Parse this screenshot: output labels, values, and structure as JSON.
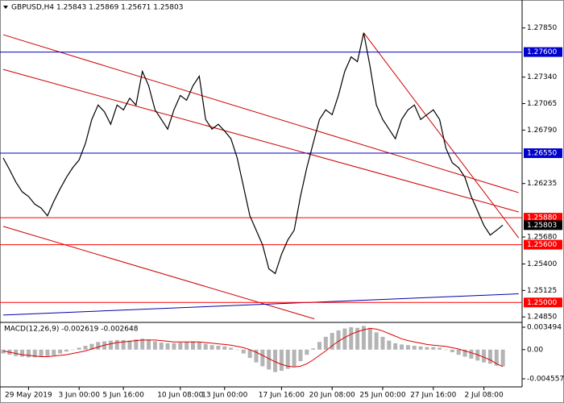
{
  "chart_data": [
    {
      "type": "line",
      "title": "GBPUSD,H4  1.25843 1.25869 1.25671 1.25803",
      "categories": [
        null,
        null,
        null,
        null,
        "29 May 2019",
        null,
        null,
        null,
        null,
        null,
        null,
        null,
        "3 Jun 00:00",
        null,
        null,
        null,
        null,
        null,
        null,
        "5 Jun 16:00",
        null,
        null,
        null,
        null,
        null,
        null,
        null,
        null,
        "10 Jun 08:00",
        null,
        null,
        null,
        null,
        null,
        null,
        "13 Jun 00:00",
        null,
        null,
        null,
        null,
        null,
        null,
        null,
        null,
        "17 Jun 16:00",
        null,
        null,
        null,
        null,
        null,
        null,
        null,
        "20 Jun 08:00",
        null,
        null,
        null,
        null,
        null,
        null,
        null,
        "25 Jun 00:00",
        null,
        null,
        null,
        null,
        null,
        null,
        null,
        "27 Jun 16:00",
        null,
        null,
        null,
        null,
        null,
        null,
        null,
        "2 Jul 08:00",
        null,
        null,
        null
      ],
      "values": [
        1.265,
        1.2638,
        1.2625,
        1.2615,
        1.261,
        1.2602,
        1.2598,
        1.259,
        1.2605,
        1.2618,
        1.263,
        1.264,
        1.2648,
        1.2665,
        1.269,
        1.2705,
        1.2698,
        1.2685,
        1.2705,
        1.27,
        1.2712,
        1.2705,
        1.274,
        1.2725,
        1.27,
        1.269,
        1.268,
        1.27,
        1.2715,
        1.271,
        1.2725,
        1.2735,
        1.269,
        1.268,
        1.2685,
        1.2678,
        1.267,
        1.265,
        1.262,
        1.259,
        1.2575,
        1.256,
        1.2535,
        1.253,
        1.255,
        1.2565,
        1.2575,
        1.261,
        1.264,
        1.2665,
        1.269,
        1.27,
        1.2695,
        1.2715,
        1.274,
        1.2755,
        1.275,
        1.278,
        1.2745,
        1.2705,
        1.269,
        1.268,
        1.267,
        1.269,
        1.27,
        1.2705,
        1.269,
        1.2695,
        1.27,
        1.269,
        1.266,
        1.2645,
        1.264,
        1.263,
        1.261,
        1.2595,
        1.258,
        1.257,
        1.2575,
        1.25803
      ],
      "color": "#000000",
      "ylim": [
        1.2481,
        1.2804
      ],
      "yticks": [
        {
          "value": 1.2785,
          "label": "1.27850"
        },
        {
          "value": 1.2734,
          "label": "1.27340"
        },
        1.27065,
        {
          "value": 1.2679,
          "label": "1.26790"
        },
        1.26235,
        {
          "value": 1.2568,
          "label": "1.25680"
        },
        {
          "value": 1.254,
          "label": "1.25400"
        },
        1.25125,
        {
          "value": 1.2485,
          "label": "1.24850"
        }
      ],
      "levels": [
        {
          "value": 1.276,
          "label": "1.27600",
          "color": "#0000cc"
        },
        {
          "value": 1.2655,
          "label": "1.26550",
          "color": "#0000cc"
        },
        {
          "value": 1.2588,
          "label": "1.25880",
          "color": "#ff0000"
        },
        {
          "value": 1.256,
          "label": "1.25600",
          "color": "#ff0000"
        },
        {
          "value": 1.25,
          "label": "1.25000",
          "color": "#ff0000"
        }
      ],
      "trend_lines": [
        {
          "color": "#cc0000",
          "x": [
            0,
            81.5
          ],
          "y": [
            1.2778,
            1.2614
          ]
        },
        {
          "color": "#cc0000",
          "x": [
            0,
            81.5
          ],
          "y": [
            1.2742,
            1.2594
          ]
        },
        {
          "color": "#cc0000",
          "x": [
            0,
            49.2
          ],
          "y": [
            1.2579,
            1.2483
          ]
        },
        {
          "color": "#cc0000",
          "x": [
            57,
            81.5
          ],
          "y": [
            1.278,
            1.2567
          ]
        },
        {
          "color": "#0000aa",
          "x": [
            0,
            81.5
          ],
          "y": [
            1.2487,
            1.2509
          ]
        }
      ]
    },
    {
      "type": "macd",
      "title": "MACD(12,26,9) -0.002619 -0.002648",
      "series": [
        {
          "type": "bar",
          "color": "#b4b4b4",
          "values": [
            -0.0006,
            -0.0008,
            -0.001,
            -0.0011,
            -0.0012,
            -0.0012,
            -0.0011,
            -0.001,
            -0.0009,
            -0.0006,
            -0.0003,
            0.0,
            0.0003,
            0.0006,
            0.0009,
            0.0012,
            0.0013,
            0.0014,
            0.0015,
            0.0015,
            0.0014,
            0.0016,
            0.0017,
            0.0016,
            0.0013,
            0.0011,
            0.001,
            0.001,
            0.0011,
            0.0012,
            0.0013,
            0.0012,
            0.0009,
            0.0007,
            0.0006,
            0.0005,
            0.0003,
            0.0,
            -0.0006,
            -0.0013,
            -0.002,
            -0.0026,
            -0.0031,
            -0.0035,
            -0.0033,
            -0.003,
            -0.0026,
            -0.0018,
            -0.0008,
            0.0002,
            0.0012,
            0.002,
            0.0026,
            0.003,
            0.0033,
            0.0035,
            0.0034,
            0.0037,
            0.0034,
            0.0027,
            0.002,
            0.0014,
            0.001,
            0.0008,
            0.0007,
            0.0006,
            0.0005,
            0.0004,
            0.0004,
            0.0003,
            0.0,
            -0.0004,
            -0.0008,
            -0.0011,
            -0.0014,
            -0.0017,
            -0.002,
            -0.0022,
            -0.0025,
            -0.002619
          ]
        },
        {
          "type": "line",
          "color": "#dd0000",
          "values": [
            -0.0002,
            -0.0004,
            -0.0006,
            -0.0008,
            -0.0009,
            -0.001,
            -0.0011,
            -0.0011,
            -0.001,
            -0.0009,
            -0.0008,
            -0.0006,
            -0.0004,
            -0.0002,
            0.0001,
            0.0004,
            0.0007,
            0.0009,
            0.0011,
            0.0012,
            0.0013,
            0.0014,
            0.0015,
            0.0015,
            0.0015,
            0.0014,
            0.0013,
            0.0012,
            0.0012,
            0.0012,
            0.0012,
            0.0012,
            0.0011,
            0.001,
            0.0009,
            0.0008,
            0.0007,
            0.0005,
            0.0003,
            0.0,
            -0.0004,
            -0.0009,
            -0.0014,
            -0.0019,
            -0.0023,
            -0.0026,
            -0.0027,
            -0.0026,
            -0.0022,
            -0.0016,
            -0.0009,
            -0.0002,
            0.0006,
            0.0013,
            0.0019,
            0.0024,
            0.0028,
            0.0031,
            0.0033,
            0.0032,
            0.0029,
            0.0025,
            0.0021,
            0.0017,
            0.0014,
            0.0012,
            0.001,
            0.0008,
            0.0007,
            0.0006,
            0.0005,
            0.0003,
            0.0001,
            -0.0002,
            -0.0005,
            -0.0008,
            -0.0012,
            -0.0016,
            -0.0022,
            -0.002648
          ]
        }
      ],
      "ylim": [
        -0.004557,
        0.003494
      ],
      "yticks": [
        0.003494,
        {
          "value": 0,
          "label": "0.00"
        },
        -0.004557
      ]
    }
  ]
}
